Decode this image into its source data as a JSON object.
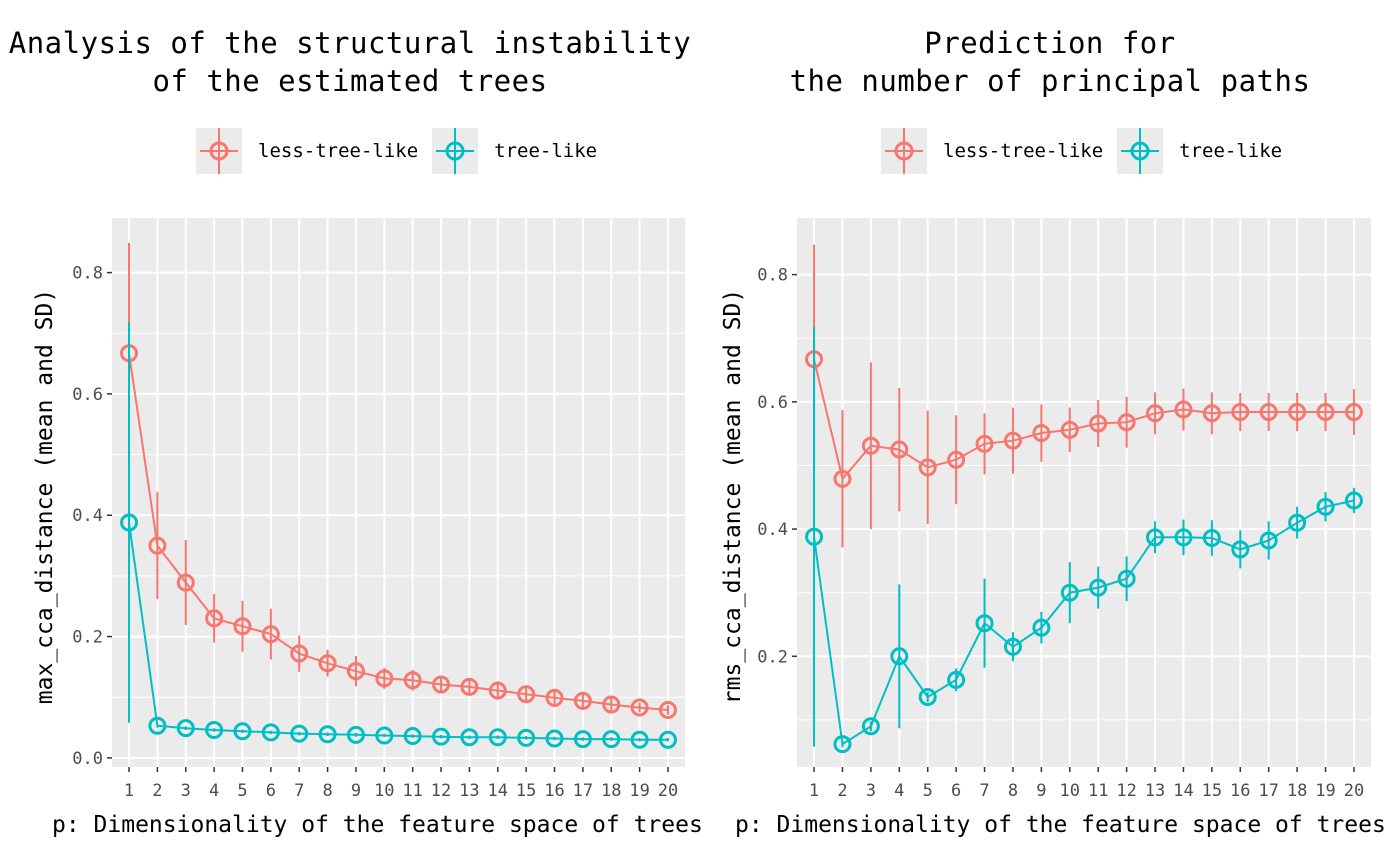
{
  "legend": {
    "less_label": "less-tree-like",
    "tree_label": "tree-like"
  },
  "colors": {
    "less": "#F8766D",
    "tree": "#00BFC4",
    "panel_bg": "#EBEBEB",
    "grid": "#FFFFFF",
    "tick_text": "#4D4D4D"
  },
  "chart_data": [
    {
      "type": "line",
      "title": "Analysis of the structural instability\nof the estimated trees",
      "xlabel": "p: Dimensionality of the feature space of trees",
      "ylabel": "max_cca_distance (mean and SD)",
      "x": [
        1,
        2,
        3,
        4,
        5,
        6,
        7,
        8,
        9,
        10,
        11,
        12,
        13,
        14,
        15,
        16,
        17,
        18,
        19,
        20
      ],
      "ylim": [
        -0.015,
        0.89
      ],
      "yticks": [
        0.0,
        0.2,
        0.4,
        0.6,
        0.8
      ],
      "ytick_labels": [
        "0.0",
        "0.2",
        "0.4",
        "0.6",
        "0.8"
      ],
      "series": [
        {
          "name": "less-tree-like",
          "mean": [
            0.667,
            0.35,
            0.289,
            0.23,
            0.217,
            0.204,
            0.172,
            0.156,
            0.143,
            0.131,
            0.128,
            0.121,
            0.117,
            0.111,
            0.105,
            0.099,
            0.094,
            0.088,
            0.083,
            0.079
          ],
          "sd": [
            0.182,
            0.088,
            0.07,
            0.04,
            0.042,
            0.042,
            0.03,
            0.022,
            0.025,
            0.017,
            0.017,
            0.012,
            0.013,
            0.015,
            0.013,
            0.015,
            0.015,
            0.01,
            0.008,
            0.008
          ]
        },
        {
          "name": "tree-like",
          "mean": [
            0.388,
            0.053,
            0.049,
            0.046,
            0.044,
            0.042,
            0.04,
            0.039,
            0.038,
            0.037,
            0.036,
            0.035,
            0.034,
            0.034,
            0.033,
            0.032,
            0.031,
            0.031,
            0.03,
            0.03
          ],
          "sd": [
            0.33,
            0.003,
            0.003,
            0.003,
            0.003,
            0.003,
            0.003,
            0.003,
            0.003,
            0.003,
            0.003,
            0.003,
            0.003,
            0.003,
            0.003,
            0.003,
            0.003,
            0.003,
            0.003,
            0.003
          ]
        }
      ]
    },
    {
      "type": "line",
      "title": "Prediction for\nthe number of principal paths",
      "xlabel": "p: Dimensionality of the feature space of trees",
      "ylabel": "rms_cca_distance (mean and SD)",
      "x": [
        1,
        2,
        3,
        4,
        5,
        6,
        7,
        8,
        9,
        10,
        11,
        12,
        13,
        14,
        15,
        16,
        17,
        18,
        19,
        20
      ],
      "ylim": [
        0.026,
        0.889
      ],
      "yticks": [
        0.2,
        0.4,
        0.6,
        0.8
      ],
      "ytick_labels": [
        "0.2",
        "0.4",
        "0.6",
        "0.8"
      ],
      "series": [
        {
          "name": "less-tree-like",
          "mean": [
            0.667,
            0.479,
            0.531,
            0.525,
            0.497,
            0.509,
            0.534,
            0.539,
            0.551,
            0.556,
            0.566,
            0.568,
            0.582,
            0.588,
            0.582,
            0.584,
            0.584,
            0.584,
            0.584,
            0.584
          ],
          "sd": [
            0.18,
            0.108,
            0.131,
            0.097,
            0.089,
            0.07,
            0.048,
            0.052,
            0.045,
            0.035,
            0.037,
            0.04,
            0.033,
            0.033,
            0.033,
            0.03,
            0.03,
            0.03,
            0.03,
            0.036
          ]
        },
        {
          "name": "tree-like",
          "mean": [
            0.388,
            0.062,
            0.09,
            0.2,
            0.136,
            0.163,
            0.252,
            0.215,
            0.245,
            0.3,
            0.308,
            0.322,
            0.387,
            0.387,
            0.386,
            0.368,
            0.382,
            0.41,
            0.435,
            0.445
          ],
          "sd": [
            0.33,
            0.005,
            0.008,
            0.113,
            0.008,
            0.018,
            0.07,
            0.023,
            0.025,
            0.048,
            0.033,
            0.035,
            0.025,
            0.028,
            0.028,
            0.03,
            0.03,
            0.025,
            0.023,
            0.02
          ]
        }
      ]
    }
  ]
}
